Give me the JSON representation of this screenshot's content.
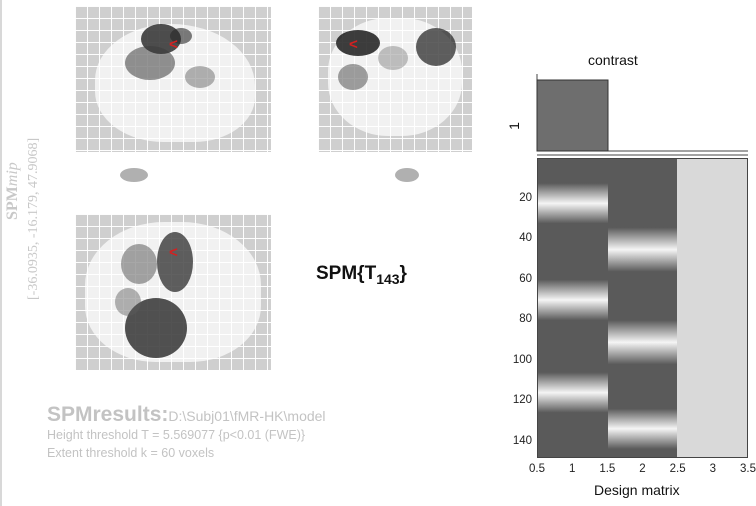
{
  "side_label": {
    "spm": "SPM",
    "mip": "mip",
    "coords": "[-36.0935, -16.179, 47.9068]"
  },
  "spm_title": {
    "main": "SPM{T",
    "sub": "143",
    "close": "}"
  },
  "results": {
    "title": "SPMresults:",
    "path": "D:\\Subj01\\fMR-HK\\model",
    "height_threshold": "Height threshold T = 5.569077  {p<0.01 (FWE)}",
    "extent_threshold": "Extent threshold k = 60 voxels"
  },
  "contrast": {
    "title": "contrast",
    "row_label": "1",
    "weights": [
      1,
      0,
      0
    ],
    "fill_color": "#6e6e6e"
  },
  "design_matrix": {
    "xlabel": "Design matrix",
    "yticks": [
      "20",
      "40",
      "60",
      "80",
      "100",
      "120",
      "140"
    ],
    "xticks": [
      "0.5",
      "1",
      "1.5",
      "2",
      "2.5",
      "3",
      "3.5"
    ],
    "rows": 148,
    "column_colors": {
      "low": "#5a5a5a",
      "high": "#f5f5f5",
      "constant": "#d9d9d9"
    }
  },
  "cursor_icon": "red-arrow-cursor-icon"
}
